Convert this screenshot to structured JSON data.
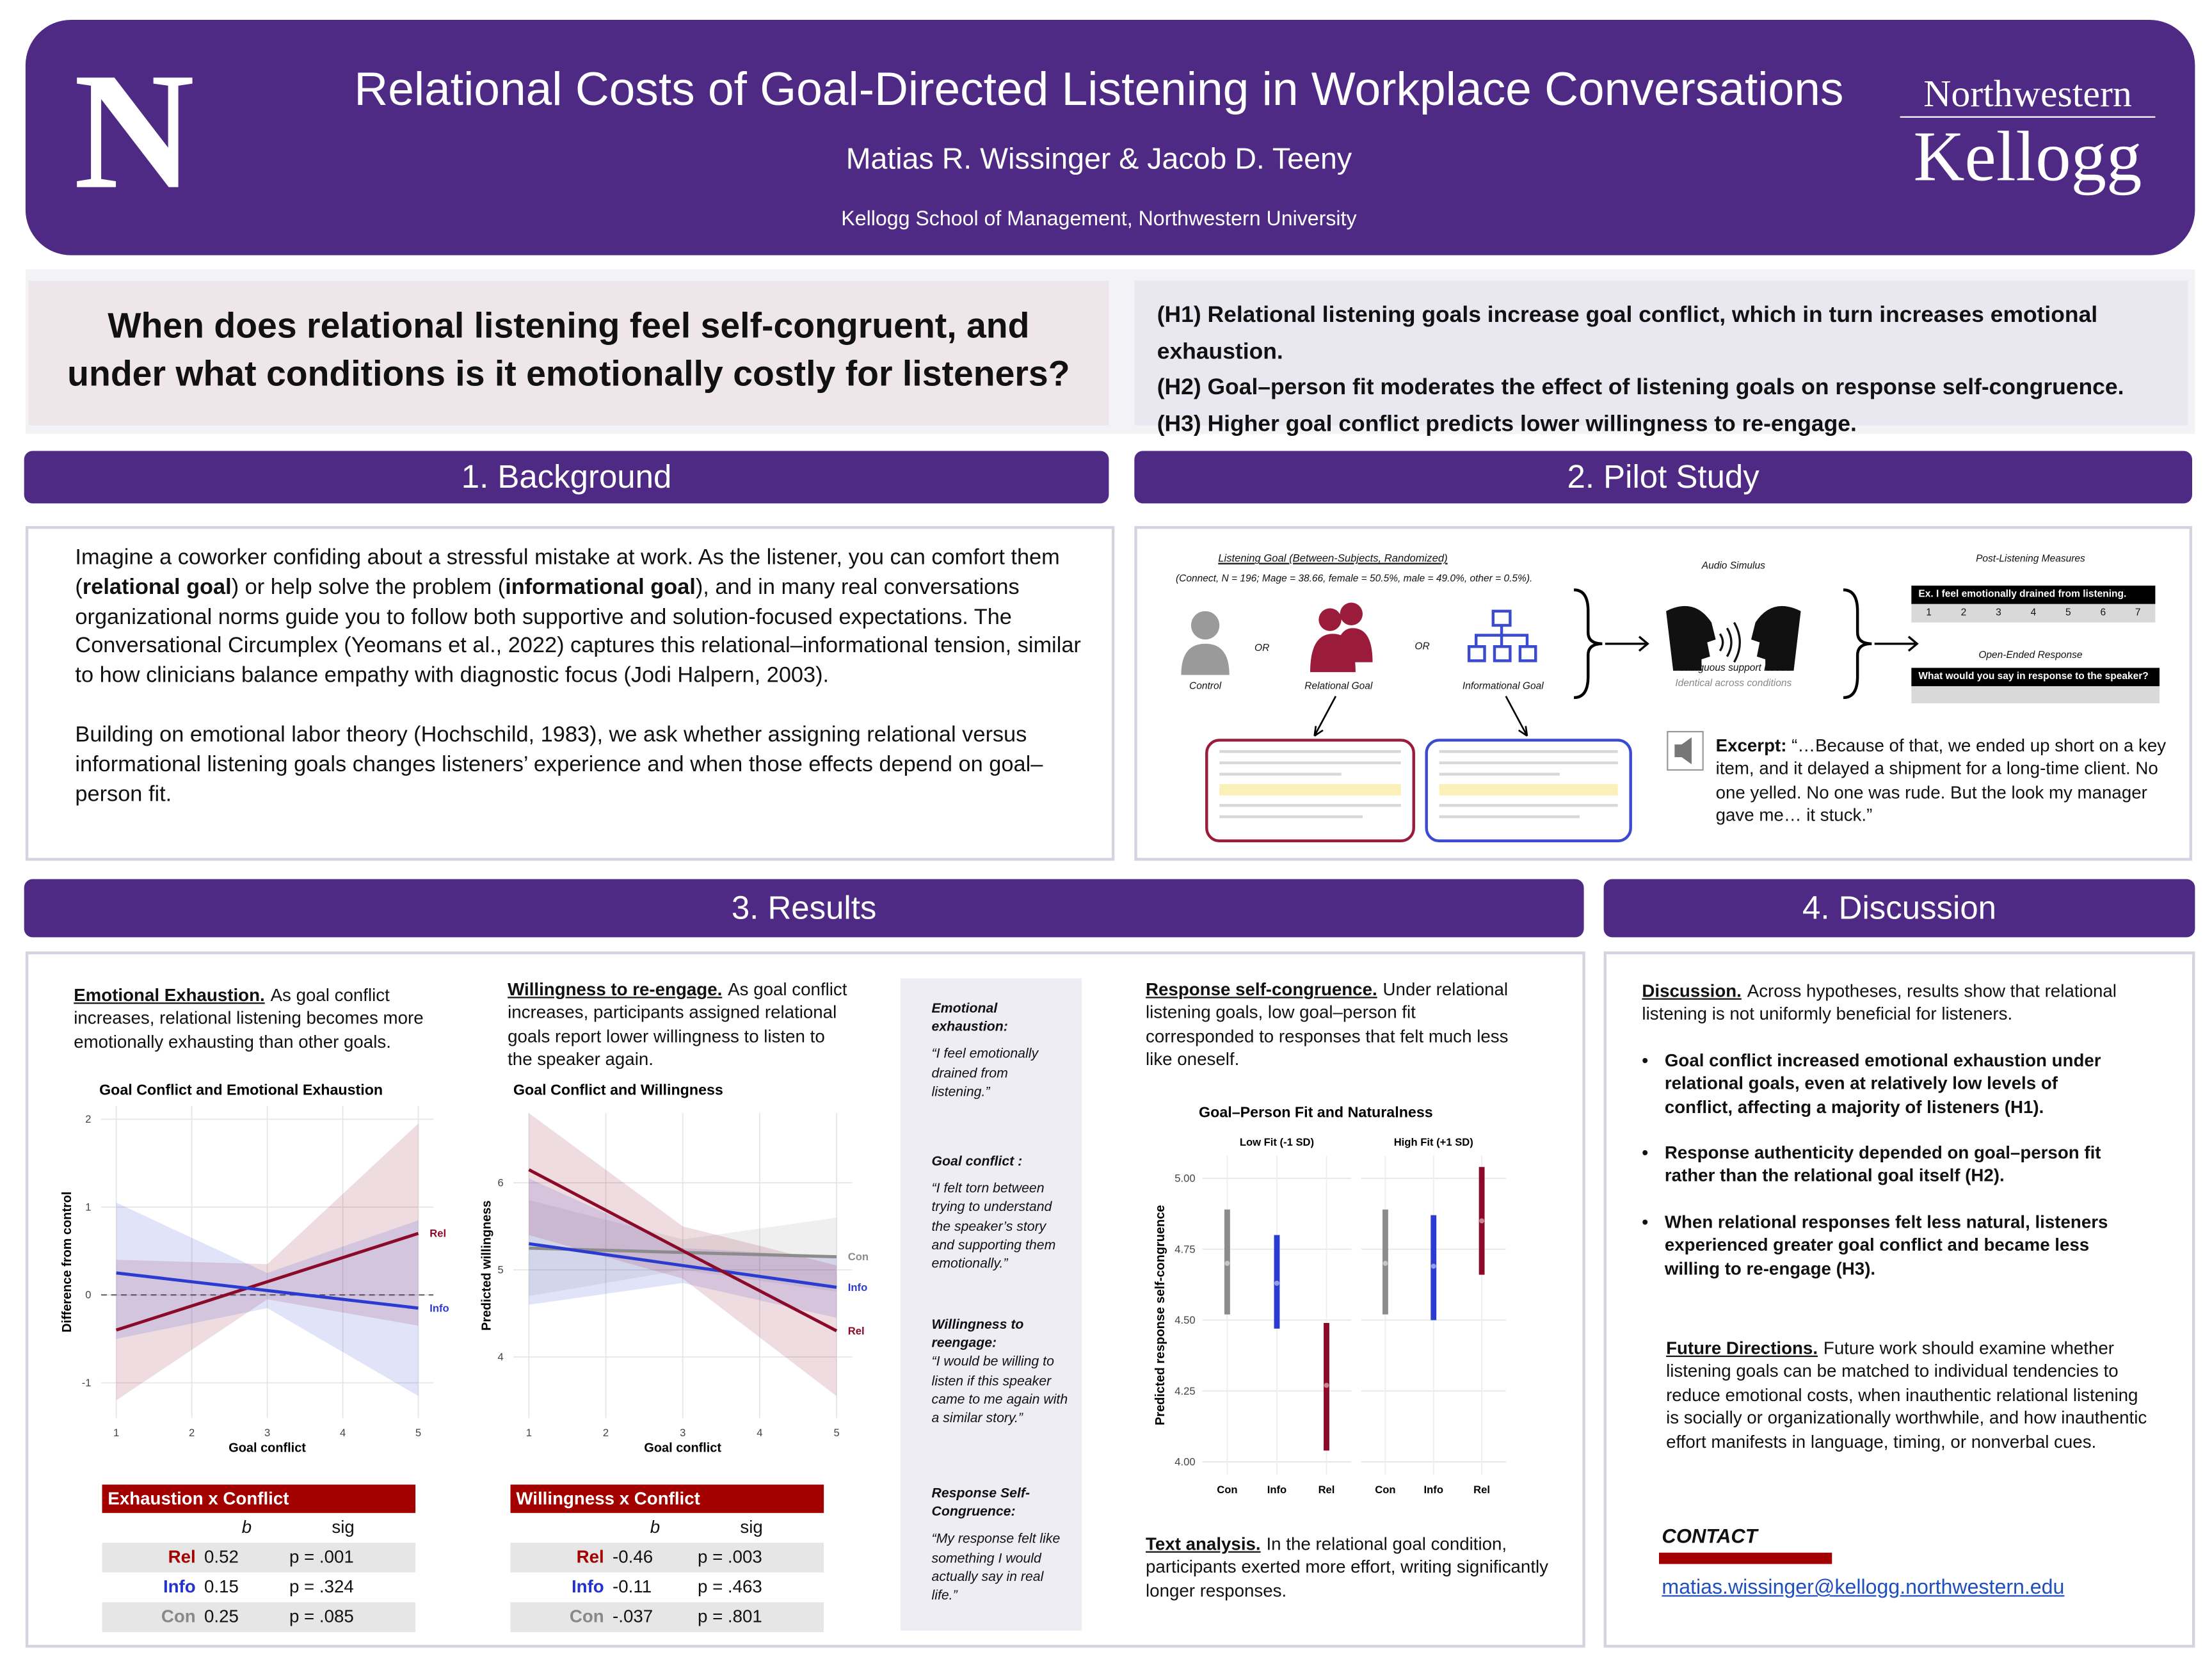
{
  "header": {
    "logo_letter": "N",
    "title": "Relational Costs of Goal-Directed Listening in Workplace Conversations",
    "authors": "Matias R. Wissinger & Jacob D. Teeny",
    "affiliation": "Kellogg School of Management, Northwestern University",
    "brand_top": "Northwestern",
    "brand_bottom": "Kellogg"
  },
  "question": [
    "When does relational listening feel self-congruent, and",
    "under what conditions is it emotionally costly for listeners?"
  ],
  "hypotheses": [
    "(H1) Relational listening goals increase goal conflict, which in turn increases emotional exhaustion.",
    "(H2) Goal–person fit moderates the effect of listening goals on response self-congruence.",
    "(H3) Higher goal conflict predicts lower willingness to re-engage."
  ],
  "sections": {
    "background": "1. Background",
    "pilot": "2. Pilot Study",
    "results": "3. Results",
    "discussion": "4. Discussion"
  },
  "background": {
    "paragraphs": [
      [
        "Imagine a coworker confiding about a stressful mistake at work. As the listener, you can comfort them (",
        "relational goal",
        ") or help solve the problem (",
        "informational goal",
        "), and in many real conversations organizational norms guide you to follow both supportive and solution-focused expectations. The Conversational Circumplex (Yeomans et al., 2022) captures this relational–informational tension, similar to how clinicians balance empathy with diagnostic focus (Jodi Halpern, 2003)."
      ],
      [
        "Building on emotional labor theory (Hochschild, 1983), we ask whether assigning relational versus informational listening goals changes listeners’ experience and when those effects depend on goal–person fit."
      ]
    ]
  },
  "pilot": {
    "goal_title": "Listening Goal (Between-Subjects, Randomized)",
    "sample": "(Connect, N = 196; Mage = 38.66, female = 50.5%, male = 49.0%, other = 0.5%).",
    "or": "OR",
    "conditions": [
      "Control",
      "Relational Goal",
      "Informational Goal"
    ],
    "audio_title": "Audio Simulus",
    "audio_caption": "Ambiguous support needs",
    "audio_note": "Identical across conditions",
    "measures_title": "Post-Listening Measures",
    "measure_item": "Ex. I feel emotionally drained from listening.",
    "scale": [
      1,
      2,
      3,
      4,
      5,
      6,
      7
    ],
    "open_title": "Open-Ended Response",
    "open_item": "What would you say in response to the speaker?",
    "excerpt_label": "Excerpt:",
    "excerpt": "“…Because of that, we ended up short on a key item, and it delayed a shipment for a long-time client. No one yelled. No one was rude. But the look my manager gave me… it stuck.”"
  },
  "results": {
    "exhaustion": {
      "heading": "Emotional Exhaustion.",
      "text": "As goal conflict increases, relational listening becomes more emotionally exhausting than other goals.",
      "table": {
        "title": "Exhaustion x Conflict",
        "columns": [
          "b",
          "sig"
        ],
        "rows": [
          [
            "Rel",
            "0.52",
            "p = .001"
          ],
          [
            "Info",
            "0.15",
            "p = .324"
          ],
          [
            "Con",
            "0.25",
            "p = .085"
          ]
        ]
      }
    },
    "willingness": {
      "heading": "Willingness to re-engage.",
      "text": "As goal conflict increases, participants assigned relational goals report lower willingness to listen to the speaker again.",
      "table": {
        "title": "Willingness x Conflict",
        "columns": [
          "b",
          "sig"
        ],
        "rows": [
          [
            "Rel",
            "-0.46",
            "p = .003"
          ],
          [
            "Info",
            "-0.11",
            "p = .463"
          ],
          [
            "Con",
            "-.037",
            "p = .801"
          ]
        ]
      }
    },
    "measures": [
      {
        "label": "Emotional exhaustion:",
        "quote": "“I feel emotionally drained from listening.”"
      },
      {
        "label": "Goal conflict :",
        "quote": "“I felt torn between trying to understand the speaker’s story and supporting them emotionally.”"
      },
      {
        "label": "Willingness to reengage:",
        "quote": "“I would be willing to listen if this speaker came to me again with a similar story.”"
      },
      {
        "label": "Response Self-Congruence:",
        "quote": "“My response felt like something I would actually say in real life.”"
      }
    ],
    "congruence": {
      "heading": "Response self-congruence.",
      "text": "Under relational listening goals, low goal–person fit corresponded to responses that felt much less like oneself."
    },
    "text_analysis": {
      "heading": "Text analysis.",
      "text": "In the relational goal condition, participants exerted more effort, writing significantly longer responses."
    }
  },
  "chart_data": [
    {
      "type": "line_band",
      "title": "Goal Conflict and Emotional Exhaustion",
      "x_label": "Goal conflict",
      "y_label": "Difference from control",
      "x": [
        1,
        3,
        5
      ],
      "xlim": [
        0.8,
        5.2
      ],
      "ylim": [
        -1.4,
        2.15
      ],
      "xticks": [
        1,
        2,
        3,
        4,
        5
      ],
      "yticks": [
        -1,
        0,
        1,
        2
      ],
      "grid": true,
      "reference_line": 0,
      "series": [
        {
          "name": "Rel",
          "color": "#8b0a2a",
          "values": [
            -0.4,
            0.15,
            0.7
          ],
          "lower": [
            -1.2,
            -0.05,
            -0.35
          ],
          "upper": [
            0.4,
            0.35,
            1.95
          ]
        },
        {
          "name": "Info",
          "color": "#2b3bd0",
          "values": [
            0.25,
            0.05,
            -0.15
          ],
          "lower": [
            -0.5,
            -0.15,
            -1.15
          ],
          "upper": [
            1.05,
            0.25,
            0.85
          ]
        }
      ]
    },
    {
      "type": "line_band",
      "title": "Goal Conflict and Willingness",
      "x_label": "Goal conflict",
      "y_label": "Predicted willingness",
      "x": [
        1,
        3,
        5
      ],
      "xlim": [
        0.8,
        5.2
      ],
      "ylim": [
        3.3,
        6.8
      ],
      "xticks": [
        1,
        2,
        3,
        4,
        5
      ],
      "yticks": [
        4,
        5,
        6
      ],
      "grid": true,
      "series": [
        {
          "name": "Con",
          "color": "#8c8c8c",
          "values": [
            5.25,
            5.2,
            5.15
          ],
          "lower": [
            4.7,
            5.0,
            4.75
          ],
          "upper": [
            5.8,
            5.35,
            5.6
          ]
        },
        {
          "name": "Info",
          "color": "#2b3bd0",
          "values": [
            5.3,
            5.05,
            4.8
          ],
          "lower": [
            4.6,
            4.85,
            4.45
          ],
          "upper": [
            6.05,
            5.25,
            5.15
          ]
        },
        {
          "name": "Rel",
          "color": "#8b0a2a",
          "values": [
            6.15,
            5.22,
            4.3
          ],
          "lower": [
            5.4,
            4.9,
            3.55
          ],
          "upper": [
            6.8,
            5.5,
            5.05
          ]
        }
      ]
    },
    {
      "type": "interval",
      "title": "Goal–Person Fit and Naturalness",
      "y_label": "Predicted response self-congruence",
      "categories": [
        "Con",
        "Info",
        "Rel"
      ],
      "colors": [
        "#8c8c8c",
        "#2b3bd0",
        "#8b0a2a"
      ],
      "ylim": [
        3.955,
        5.08
      ],
      "yticks": [
        {
          "value": 4,
          "label": "4.00"
        },
        {
          "value": 4.25,
          "label": "4.25"
        },
        {
          "value": 4.5,
          "label": "4.50"
        },
        {
          "value": 4.75,
          "label": "4.75"
        },
        {
          "value": 5,
          "label": "5.00"
        }
      ],
      "grid": true,
      "series": [
        {
          "name": "Low Fit (-1 SD)",
          "values": [
            4.7,
            4.63,
            4.27
          ],
          "lower": [
            4.52,
            4.47,
            4.04
          ],
          "upper": [
            4.89,
            4.8,
            4.49
          ]
        },
        {
          "name": "High Fit (+1 SD)",
          "values": [
            4.7,
            4.69,
            4.85
          ],
          "lower": [
            4.52,
            4.5,
            4.66
          ],
          "upper": [
            4.89,
            4.87,
            5.04
          ]
        }
      ]
    }
  ],
  "discussion": {
    "heading": "Discussion.",
    "text": "Across hypotheses, results show that relational listening is not uniformly beneficial for listeners.",
    "bullets": [
      "Goal conflict increased emotional exhaustion under relational goals, even at relatively low levels of conflict, affecting a majority of listeners (H1).",
      "Response authenticity depended on goal–person fit rather than the relational goal itself (H2).",
      "When relational responses felt less natural, listeners experienced greater goal conflict and became less willing to re-engage (H3)."
    ],
    "future_heading": "Future Directions.",
    "future_text": "Future work should examine whether listening goals can be matched to individual tendencies to reduce emotional costs, when inauthentic relational listening is socially or organizationally worthwhile, and how inauthentic effort manifests in language, timing, or nonverbal cues.",
    "contact": "CONTACT",
    "email": "matias.wissinger@kellogg.northwestern.edu"
  }
}
